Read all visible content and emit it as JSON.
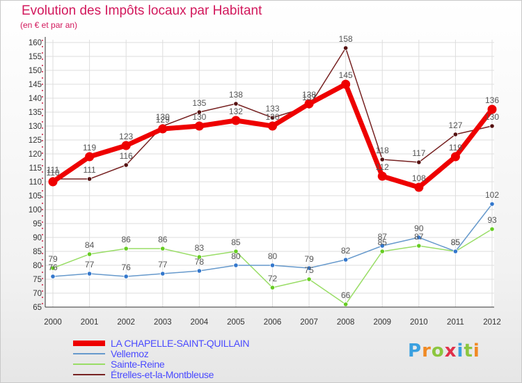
{
  "chart_data": {
    "type": "line",
    "title": "Evolution des Impôts locaux par Habitant",
    "subtitle": "(en € et par an)",
    "x": [
      "2000",
      "2001",
      "2002",
      "2003",
      "2004",
      "2005",
      "2006",
      "2007",
      "2008",
      "2009",
      "2010",
      "2011",
      "2012"
    ],
    "ylim": [
      65,
      160
    ],
    "yticks": [
      65,
      70,
      75,
      80,
      85,
      90,
      95,
      100,
      105,
      110,
      115,
      120,
      125,
      130,
      135,
      140,
      145,
      150,
      155,
      160
    ],
    "series": [
      {
        "name": "LA CHAPELLE-SAINT-QUILLAIN",
        "color": "#ee0000",
        "width": 7,
        "dot": "#ee0000",
        "values": [
          110,
          119,
          123,
          129,
          130,
          132,
          130,
          138,
          145,
          112,
          108,
          119,
          136
        ]
      },
      {
        "name": "Vellemoz",
        "color": "#6699cc",
        "width": 1.5,
        "dot": "#3377cc",
        "values": [
          76,
          77,
          76,
          77,
          78,
          80,
          80,
          79,
          82,
          87,
          90,
          85,
          102
        ]
      },
      {
        "name": "Sainte-Reine",
        "color": "#99dd66",
        "width": 1.5,
        "dot": "#66cc22",
        "values": [
          79,
          84,
          86,
          86,
          83,
          85,
          72,
          75,
          66,
          85,
          87,
          85,
          93
        ]
      },
      {
        "name": "Étrelles-et-la-Montbleuse",
        "color": "#772222",
        "width": 1.5,
        "dot": "#551111",
        "values": [
          111,
          111,
          116,
          130,
          135,
          138,
          133,
          137,
          158,
          118,
          117,
          127,
          130
        ]
      }
    ]
  },
  "brand": {
    "logo": "Proxiti"
  }
}
